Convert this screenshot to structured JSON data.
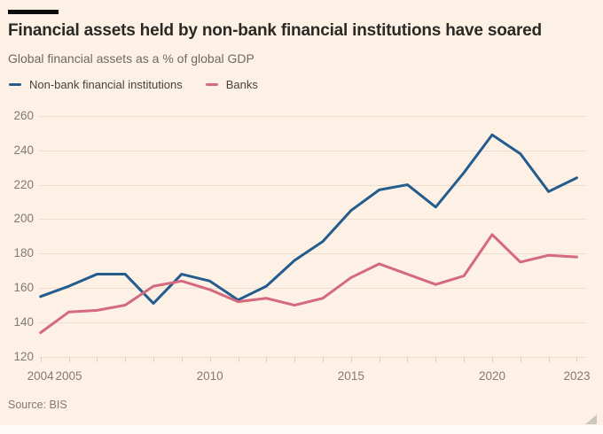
{
  "window": {
    "background": "#fdf1e6"
  },
  "header": {
    "title": "Financial assets held by non-bank financial institutions have soared",
    "subtitle": "Global financial assets as a % of global GDP"
  },
  "legend": [
    {
      "label": "Non-bank financial institutions",
      "color": "#245c8d"
    },
    {
      "label": "Banks",
      "color": "#d4697f"
    }
  ],
  "footer": {
    "source": "Source: BIS"
  },
  "chart_data": {
    "type": "line",
    "title": "Financial assets held by non-bank financial institutions have soared",
    "subtitle": "Global financial assets as a % of global GDP",
    "ylabel": "Global financial assets as a % of global GDP",
    "x": [
      2004,
      2005,
      2006,
      2007,
      2008,
      2009,
      2010,
      2011,
      2012,
      2013,
      2014,
      2015,
      2016,
      2017,
      2018,
      2019,
      2020,
      2021,
      2022,
      2023
    ],
    "series": [
      {
        "name": "Non-bank financial institutions",
        "color": "#245c8d",
        "values": [
          155,
          161,
          168,
          168,
          151,
          168,
          164,
          153,
          161,
          176,
          187,
          205,
          217,
          220,
          207,
          227,
          249,
          238,
          216,
          224
        ]
      },
      {
        "name": "Banks",
        "color": "#d4697f",
        "values": [
          134,
          146,
          147,
          150,
          161,
          164,
          159,
          152,
          154,
          150,
          154,
          166,
          174,
          168,
          162,
          167,
          191,
          175,
          179,
          178
        ]
      }
    ],
    "ylim": [
      120,
      260
    ],
    "yticks": [
      120,
      140,
      160,
      180,
      200,
      220,
      240,
      260
    ],
    "xtick_years": [
      2004,
      2005,
      2006,
      2007,
      2008,
      2009,
      2010,
      2011,
      2012,
      2013,
      2014,
      2015,
      2016,
      2017,
      2018,
      2019,
      2020,
      2021,
      2022,
      2023
    ],
    "xtick_labeled": [
      2004,
      2005,
      2010,
      2015,
      2020,
      2023
    ],
    "grid": true,
    "legend_position": "top",
    "source": "Source: BIS"
  }
}
